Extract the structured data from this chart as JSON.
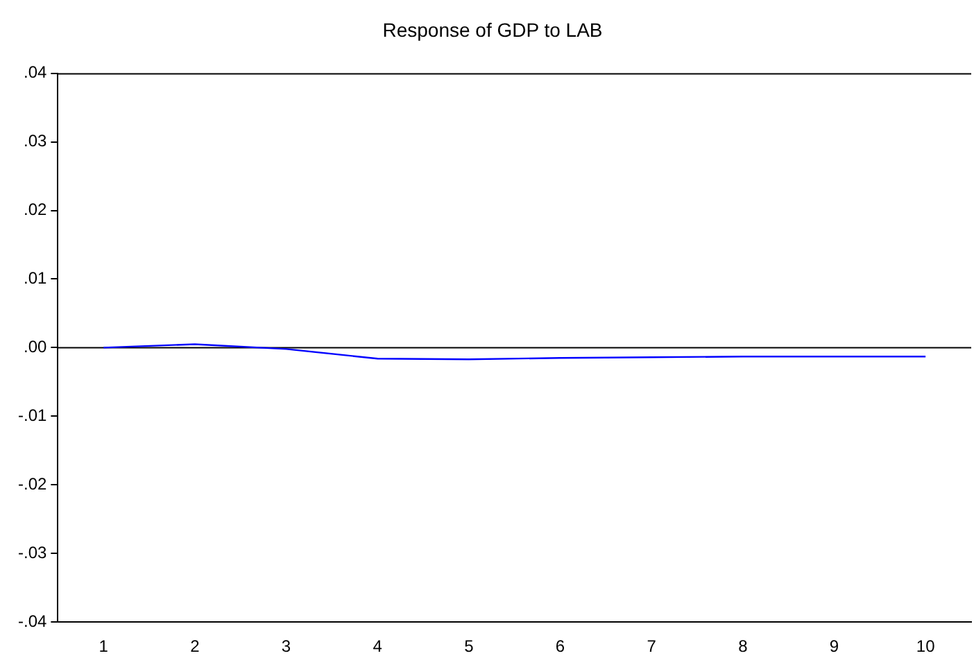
{
  "chart_data": {
    "type": "line",
    "title": "Response of GDP to LAB",
    "categories": [
      "1",
      "2",
      "3",
      "4",
      "5",
      "6",
      "7",
      "8",
      "9",
      "10"
    ],
    "series": [
      {
        "color": "#0000ff",
        "values": [
          0.0,
          0.0005,
          -0.0002,
          -0.0016,
          -0.0017,
          -0.0015,
          -0.0014,
          -0.0013,
          -0.0013,
          -0.0013
        ]
      }
    ],
    "ylim": [
      -0.04,
      0.04
    ],
    "yticks": [
      {
        "value": -0.04,
        "label": "-.04"
      },
      {
        "value": -0.03,
        "label": "-.03"
      },
      {
        "value": -0.02,
        "label": "-.02"
      },
      {
        "value": -0.01,
        "label": "-.01"
      },
      {
        "value": 0,
        "label": ".00"
      },
      {
        "value": 0.01,
        "label": ".01"
      },
      {
        "value": 0.02,
        "label": ".02"
      },
      {
        "value": 0.03,
        "label": ".03"
      },
      {
        "value": 0.04,
        "label": ".04"
      }
    ],
    "ref_lines": [
      {
        "axis": "y",
        "value": 0,
        "color": "#000000"
      }
    ],
    "grid": false,
    "legend": false,
    "marker": "none",
    "line_style": "solid"
  }
}
